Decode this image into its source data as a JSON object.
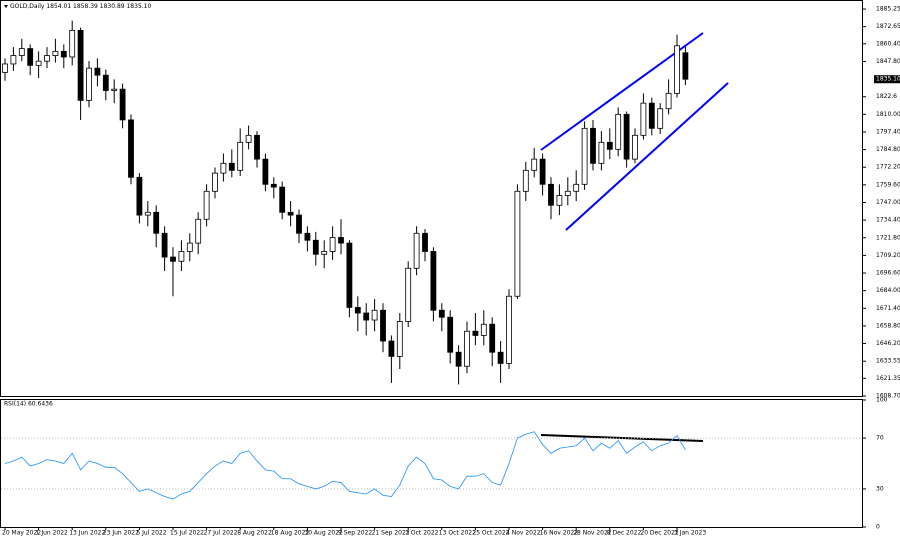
{
  "chart_data": {
    "type": "candlestick",
    "header": "GOLD,Daily  1854.01 1858.39 1830.89 1835.10",
    "price_label": "1835.10",
    "categories": [
      "20 May 2022",
      null,
      null,
      null,
      "1 Jun 2022",
      null,
      null,
      null,
      "13 Jun 2022",
      null,
      null,
      null,
      "23 Jun 2022",
      null,
      null,
      null,
      "5 Jul 2022",
      null,
      null,
      null,
      "15 Jul 2022",
      null,
      null,
      null,
      "27 Jul 2022",
      null,
      null,
      null,
      "8 Aug 2022",
      null,
      null,
      null,
      "18 Aug 2022",
      null,
      null,
      null,
      "30 Aug 2022",
      null,
      null,
      null,
      "9 Sep 2022",
      null,
      null,
      null,
      "21 Sep 2022",
      null,
      null,
      null,
      "3 Oct 2022",
      null,
      null,
      null,
      "13 Oct 2022",
      null,
      null,
      null,
      "25 Oct 2022",
      null,
      null,
      null,
      "4 Nov 2022",
      null,
      null,
      null,
      "16 Nov 2022",
      null,
      null,
      null,
      "28 Nov 2022",
      null,
      null,
      null,
      "8 Dec 2022",
      null,
      null,
      null,
      "20 Dec 2022",
      null,
      null,
      null,
      "3 Jan 2023",
      null
    ],
    "open": [
      1840,
      1846,
      1852,
      1857,
      1845,
      1848,
      1852,
      1855,
      1851,
      1870,
      1820,
      1843,
      1838,
      1827,
      1828,
      1806,
      1765,
      1738,
      1740,
      1725,
      1708,
      1705,
      1712,
      1718,
      1735,
      1755,
      1768,
      1775,
      1770,
      1790,
      1795,
      1778,
      1760,
      1758,
      1740,
      1738,
      1725,
      1720,
      1710,
      1712,
      1722,
      1718,
      1672,
      1668,
      1663,
      1670,
      1648,
      1637,
      1662,
      1700,
      1725,
      1712,
      1670,
      1665,
      1640,
      1630,
      1655,
      1652,
      1660,
      1640,
      1632,
      1680,
      1755,
      1770,
      1778,
      1760,
      1745,
      1752,
      1755,
      1760,
      1800,
      1775,
      1790,
      1785,
      1810,
      1778,
      1795,
      1818,
      1800,
      1814,
      1825,
      1854.01
    ],
    "high": [
      1850,
      1858,
      1864,
      1860,
      1855,
      1858,
      1864,
      1860,
      1877,
      1872,
      1848,
      1850,
      1842,
      1835,
      1832,
      1810,
      1768,
      1748,
      1745,
      1730,
      1715,
      1720,
      1725,
      1740,
      1760,
      1772,
      1782,
      1785,
      1800,
      1802,
      1798,
      1782,
      1765,
      1762,
      1748,
      1742,
      1730,
      1726,
      1720,
      1730,
      1735,
      1720,
      1680,
      1675,
      1678,
      1675,
      1652,
      1668,
      1705,
      1730,
      1728,
      1715,
      1675,
      1670,
      1645,
      1662,
      1668,
      1670,
      1665,
      1648,
      1685,
      1760,
      1776,
      1786,
      1782,
      1765,
      1760,
      1765,
      1770,
      1805,
      1806,
      1798,
      1800,
      1815,
      1812,
      1800,
      1825,
      1822,
      1818,
      1835,
      1867,
      1858.39
    ],
    "low": [
      1834,
      1841,
      1848,
      1838,
      1836,
      1843,
      1847,
      1843,
      1845,
      1806,
      1815,
      1830,
      1820,
      1818,
      1800,
      1760,
      1732,
      1730,
      1715,
      1698,
      1680,
      1698,
      1705,
      1710,
      1730,
      1750,
      1762,
      1765,
      1766,
      1785,
      1772,
      1755,
      1750,
      1735,
      1730,
      1718,
      1712,
      1702,
      1700,
      1706,
      1710,
      1665,
      1655,
      1652,
      1655,
      1640,
      1618,
      1628,
      1658,
      1695,
      1705,
      1662,
      1655,
      1632,
      1617,
      1625,
      1645,
      1645,
      1630,
      1618,
      1628,
      1678,
      1748,
      1765,
      1752,
      1735,
      1738,
      1745,
      1748,
      1756,
      1770,
      1770,
      1778,
      1780,
      1772,
      1775,
      1792,
      1795,
      1796,
      1810,
      1822,
      1830.89
    ],
    "close": [
      1846,
      1852,
      1857,
      1845,
      1848,
      1852,
      1855,
      1851,
      1870,
      1820,
      1843,
      1838,
      1827,
      1828,
      1806,
      1765,
      1738,
      1740,
      1725,
      1708,
      1705,
      1712,
      1718,
      1735,
      1755,
      1768,
      1775,
      1770,
      1790,
      1795,
      1778,
      1760,
      1758,
      1740,
      1738,
      1725,
      1720,
      1710,
      1712,
      1722,
      1718,
      1672,
      1668,
      1663,
      1670,
      1648,
      1637,
      1662,
      1700,
      1725,
      1712,
      1670,
      1665,
      1640,
      1630,
      1655,
      1652,
      1660,
      1640,
      1632,
      1680,
      1755,
      1770,
      1778,
      1760,
      1745,
      1752,
      1755,
      1760,
      1800,
      1775,
      1790,
      1785,
      1810,
      1778,
      1795,
      1818,
      1800,
      1814,
      1825,
      1859,
      1835.1
    ],
    "ylim": [
      1608,
      1891
    ],
    "yticks": [
      1885.25,
      1872.65,
      {
        "value": 1860.4,
        "label": "1860.40"
      },
      {
        "value": 1847.8,
        "label": "1847.80"
      },
      1822.6,
      {
        "value": 1810,
        "label": "1810.00"
      },
      {
        "value": 1797.4,
        "label": "1797.40"
      },
      {
        "value": 1784.8,
        "label": "1784.80"
      },
      {
        "value": 1772.2,
        "label": "1772.20"
      },
      {
        "value": 1759.6,
        "label": "1759.60"
      },
      {
        "value": 1747,
        "label": "1747.00"
      },
      {
        "value": 1734.4,
        "label": "1734.40"
      },
      {
        "value": 1721.8,
        "label": "1721.80"
      },
      {
        "value": 1709.2,
        "label": "1709.20"
      },
      {
        "value": 1696.6,
        "label": "1696.60"
      },
      {
        "value": 1684,
        "label": "1684.00"
      },
      {
        "value": 1671.4,
        "label": "1671.40"
      },
      {
        "value": 1658.8,
        "label": "1658.80"
      },
      {
        "value": 1646.2,
        "label": "1646.20"
      },
      1633.55,
      1621.35,
      {
        "value": 1608.7,
        "label": "1608.70"
      }
    ],
    "rsi": {
      "title": "RSI(14) 60.6436",
      "color": "#1e90ff",
      "values": [
        50,
        52,
        55,
        48,
        50,
        53,
        52,
        50,
        58,
        45,
        52,
        50,
        47,
        47,
        42,
        35,
        28,
        30,
        27,
        24,
        22,
        26,
        28,
        35,
        42,
        48,
        52,
        50,
        58,
        60,
        52,
        45,
        44,
        38,
        38,
        34,
        32,
        30,
        32,
        36,
        35,
        28,
        27,
        26,
        30,
        25,
        24,
        33,
        48,
        55,
        50,
        38,
        37,
        32,
        30,
        40,
        40,
        42,
        35,
        33,
        50,
        70,
        73,
        75,
        65,
        58,
        62,
        63,
        64,
        70,
        60,
        66,
        62,
        68,
        58,
        63,
        67,
        60,
        64,
        66,
        72,
        60.6436
      ],
      "ylim": [
        0,
        100
      ],
      "yticks": [
        100,
        70,
        30,
        0
      ]
    }
  }
}
